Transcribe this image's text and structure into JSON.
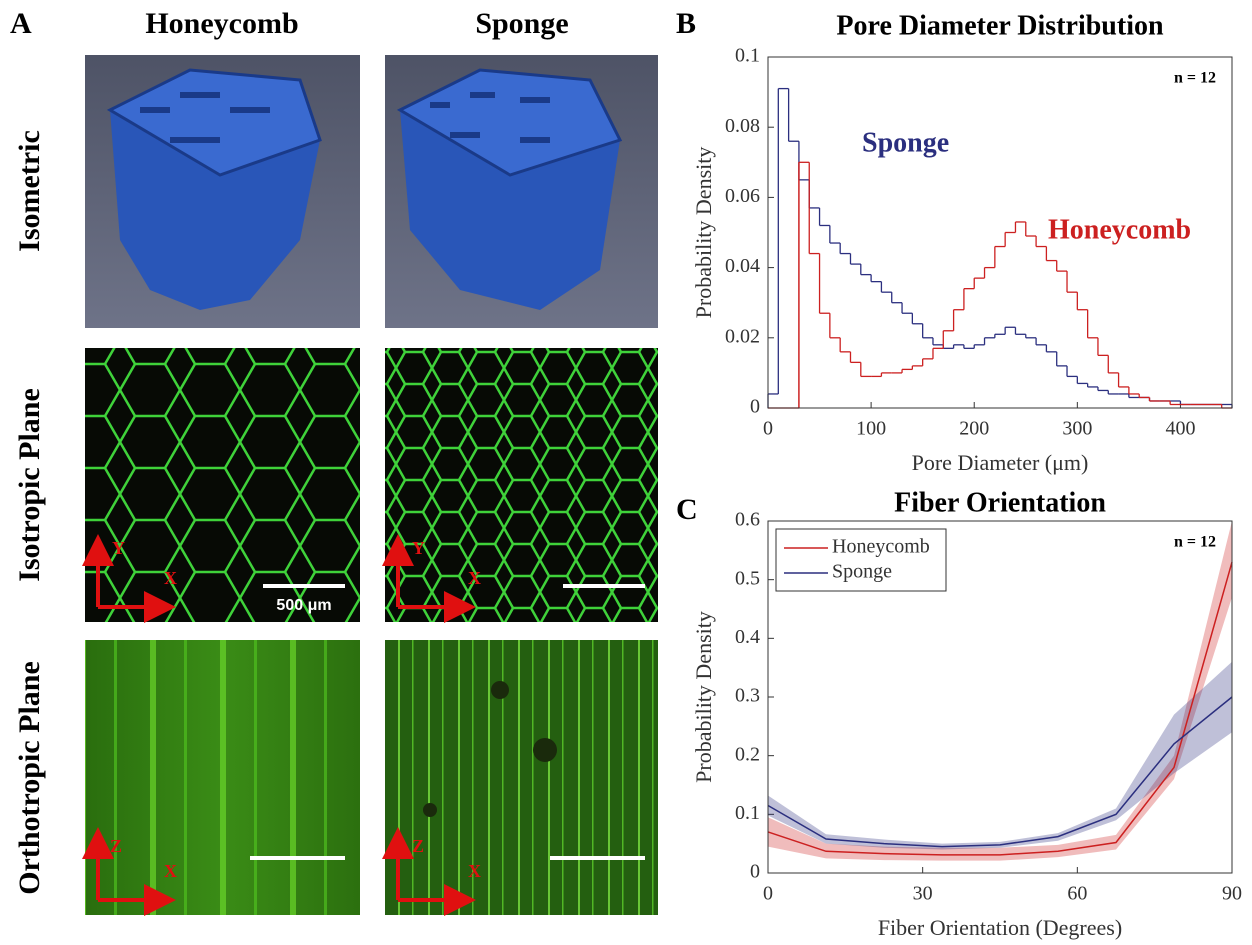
{
  "panel_a": {
    "letter": "A",
    "columns": [
      "Honeycomb",
      "Sponge"
    ],
    "rows": [
      "Isometric",
      "Isotropic Plane",
      "Orthotropic Plane"
    ],
    "axis_labels": {
      "x": "X",
      "y": "Y",
      "z": "Z"
    },
    "scale_bar": "500 μm"
  },
  "chart_data": [
    {
      "type": "histogram",
      "letter": "B",
      "title": "Pore Diameter Distribution",
      "x_label": "Pore Diameter  (μm)",
      "y_label": "Probability Density",
      "annotation": "n = 12",
      "bins": [
        0,
        10,
        20,
        30,
        40,
        50,
        60,
        70,
        80,
        90,
        100,
        110,
        120,
        130,
        140,
        150,
        160,
        170,
        180,
        190,
        200,
        210,
        220,
        230,
        240,
        250,
        260,
        270,
        280,
        290,
        300,
        310,
        320,
        330,
        340,
        350,
        360,
        370,
        380,
        390,
        400,
        410,
        420,
        430,
        440,
        450
      ],
      "series": [
        {
          "name": "Sponge",
          "color": "#2b2f7f",
          "values": [
            0.004,
            0.091,
            0.076,
            0.065,
            0.057,
            0.052,
            0.047,
            0.044,
            0.041,
            0.038,
            0.036,
            0.033,
            0.03,
            0.027,
            0.024,
            0.02,
            0.018,
            0.017,
            0.018,
            0.017,
            0.018,
            0.02,
            0.021,
            0.023,
            0.021,
            0.02,
            0.018,
            0.016,
            0.012,
            0.009,
            0.007,
            0.006,
            0.005,
            0.004,
            0.004,
            0.003,
            0.003,
            0.002,
            0.002,
            0.002,
            0.001,
            0.001,
            0.001,
            0.001,
            0.001
          ]
        },
        {
          "name": "Honeycomb",
          "color": "#cc2020",
          "values": [
            0,
            0,
            0,
            0.07,
            0.044,
            0.027,
            0.02,
            0.016,
            0.013,
            0.009,
            0.009,
            0.01,
            0.01,
            0.011,
            0.012,
            0.014,
            0.017,
            0.022,
            0.028,
            0.034,
            0.037,
            0.04,
            0.046,
            0.05,
            0.053,
            0.049,
            0.046,
            0.042,
            0.039,
            0.033,
            0.028,
            0.02,
            0.015,
            0.01,
            0.006,
            0.004,
            0.003,
            0.002,
            0.002,
            0.001,
            0.001,
            0.001,
            0.001,
            0.001,
            0
          ]
        }
      ],
      "xlim": [
        0,
        450
      ],
      "xticks": [
        0,
        100,
        200,
        300,
        400
      ],
      "ylim": [
        0,
        0.1
      ],
      "yticks": [
        0,
        0.02,
        0.04,
        0.06,
        0.08,
        0.1
      ]
    },
    {
      "type": "line",
      "letter": "C",
      "title": "Fiber Orientation",
      "x_label": "Fiber Orientation (Degrees)",
      "y_label": "Probability Density",
      "annotation": "n = 12",
      "x": [
        0,
        11.25,
        22.5,
        33.75,
        45,
        56.25,
        67.5,
        78.75,
        90
      ],
      "series": [
        {
          "name": "Honeycomb",
          "color": "#cc2020",
          "values": [
            0.07,
            0.037,
            0.033,
            0.031,
            0.031,
            0.037,
            0.052,
            0.18,
            0.53
          ],
          "lower": [
            0.045,
            0.025,
            0.022,
            0.021,
            0.021,
            0.027,
            0.04,
            0.16,
            0.47
          ],
          "upper": [
            0.095,
            0.05,
            0.045,
            0.043,
            0.043,
            0.048,
            0.065,
            0.2,
            0.6
          ]
        },
        {
          "name": "Sponge",
          "color": "#2b2f7f",
          "values": [
            0.115,
            0.058,
            0.05,
            0.045,
            0.048,
            0.062,
            0.1,
            0.22,
            0.3
          ],
          "lower": [
            0.098,
            0.05,
            0.043,
            0.04,
            0.043,
            0.055,
            0.09,
            0.17,
            0.24
          ],
          "upper": [
            0.132,
            0.066,
            0.057,
            0.05,
            0.053,
            0.068,
            0.11,
            0.27,
            0.36
          ]
        }
      ],
      "xlim": [
        0,
        90
      ],
      "xticks": [
        0,
        30,
        60,
        90
      ],
      "ylim": [
        0,
        0.6
      ],
      "yticks": [
        0,
        0.1,
        0.2,
        0.3,
        0.4,
        0.5,
        0.6
      ],
      "legend": "top-left"
    }
  ]
}
